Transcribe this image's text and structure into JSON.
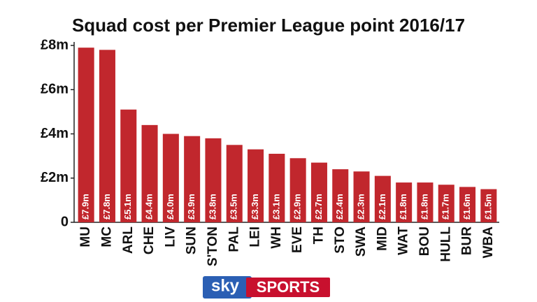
{
  "chart_data": {
    "type": "bar",
    "title": "Squad cost per Premier League point 2016/17",
    "categories": [
      "MU",
      "MC",
      "ARL",
      "CHE",
      "LIV",
      "SUN",
      "S'TON",
      "PAL",
      "LEI",
      "WH",
      "EVE",
      "TH",
      "STO",
      "SWA",
      "MID",
      "WAT",
      "BOU",
      "HULL",
      "BUR",
      "WBA"
    ],
    "values": [
      7.9,
      7.8,
      5.1,
      4.4,
      4.0,
      3.9,
      3.8,
      3.5,
      3.3,
      3.1,
      2.9,
      2.7,
      2.4,
      2.3,
      2.1,
      1.8,
      1.8,
      1.7,
      1.6,
      1.5
    ],
    "value_labels": [
      "£7.9m",
      "£7.8m",
      "£5.1m",
      "£4.4m",
      "£4.0m",
      "£3.9m",
      "£3.8m",
      "£3.5m",
      "£3.3m",
      "£3.1m",
      "£2.9m",
      "£2.7m",
      "£2.4m",
      "£2.3m",
      "£2.1m",
      "£1.8m",
      "£1.8m",
      "£1.7m",
      "£1.6m",
      "£1.5m"
    ],
    "color": "#c1272d",
    "ylim": [
      0,
      8
    ],
    "yticks": [
      0,
      {
        "value": 2,
        "label": "£2m"
      },
      {
        "value": 4,
        "label": "£4m"
      },
      {
        "value": 6,
        "label": "£6m"
      },
      {
        "value": 8,
        "label": "£8m"
      }
    ],
    "grid": false
  },
  "logo": {
    "brand": "sky",
    "product": "SPORTS"
  }
}
